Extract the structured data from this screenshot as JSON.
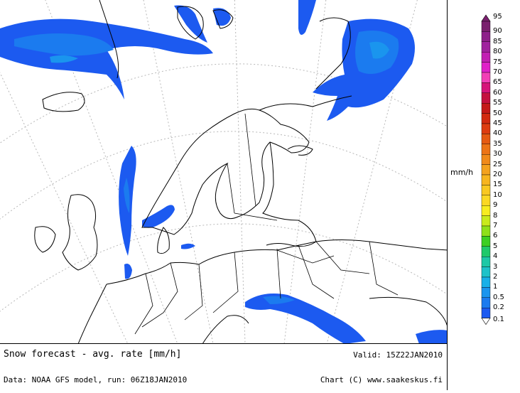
{
  "caption": {
    "title": "Snow forecast - avg. rate [mm/h]",
    "valid": "Valid: 15Z22JAN2010",
    "data_source": "Data: NOAA GFS model, run: 06Z18JAN2010",
    "credit": "Chart (C) www.saakeskus.fi"
  },
  "legend": {
    "unit": "mm/h",
    "levels": [
      {
        "label": "95",
        "color": "#7a1f6e"
      },
      {
        "label": "90",
        "color": "#8e1f8a"
      },
      {
        "label": "85",
        "color": "#a0229e"
      },
      {
        "label": "80",
        "color": "#c21fb3"
      },
      {
        "label": "75",
        "color": "#e020c8"
      },
      {
        "label": "70",
        "color": "#f23fb6"
      },
      {
        "label": "65",
        "color": "#d6147a"
      },
      {
        "label": "60",
        "color": "#c4103f"
      },
      {
        "label": "55",
        "color": "#c41919"
      },
      {
        "label": "50",
        "color": "#d22a10"
      },
      {
        "label": "45",
        "color": "#dd3c10"
      },
      {
        "label": "40",
        "color": "#e55a12"
      },
      {
        "label": "35",
        "color": "#ec7416"
      },
      {
        "label": "30",
        "color": "#f08a1a"
      },
      {
        "label": "25",
        "color": "#f4a21e"
      },
      {
        "label": "20",
        "color": "#f7b51f"
      },
      {
        "label": "15",
        "color": "#f9c821"
      },
      {
        "label": "10",
        "color": "#fbd824"
      },
      {
        "label": "9",
        "color": "#f7ec20"
      },
      {
        "label": "8",
        "color": "#c9ea1c"
      },
      {
        "label": "7",
        "color": "#8fe01a"
      },
      {
        "label": "6",
        "color": "#3ccf22"
      },
      {
        "label": "5",
        "color": "#1fc96a"
      },
      {
        "label": "4",
        "color": "#1ec8a6"
      },
      {
        "label": "3",
        "color": "#1ec2c9"
      },
      {
        "label": "2",
        "color": "#18b0e8"
      },
      {
        "label": "1",
        "color": "#1a95ee"
      },
      {
        "label": "0.5",
        "color": "#1b7bef"
      },
      {
        "label": "0.2",
        "color": "#1c5af0"
      },
      {
        "label": "0.1",
        "color": "#ffffff"
      }
    ]
  },
  "map": {
    "snow_light_color": "#1c5af0",
    "snow_medium_color": "#1b7bef",
    "snow_heavy_color": "#1a95ee",
    "land_outline_color": "#000000",
    "graticule_color": "#b8b8b8"
  }
}
